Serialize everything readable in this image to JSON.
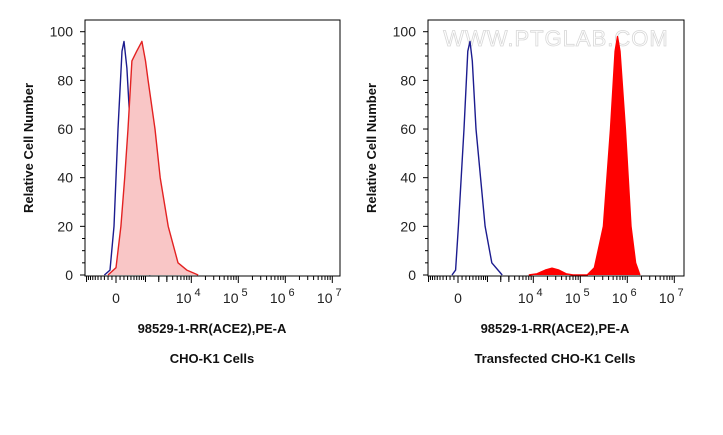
{
  "chart_data": [
    {
      "type": "area",
      "xlabel": "98529-1-RR(ACE2),PE-A",
      "ylabel": "Relative Cell Number",
      "caption": "CHO-K1 Cells",
      "x_scale": "biexponential",
      "x_tick_labels": [
        {
          "value": 0,
          "label": "0"
        },
        {
          "value": 10000,
          "label": "10",
          "exp": "4"
        },
        {
          "value": 100000,
          "label": "10",
          "exp": "5"
        },
        {
          "value": 1000000,
          "label": "10",
          "exp": "6"
        },
        {
          "value": 10000000,
          "label": "10",
          "exp": "7"
        }
      ],
      "y_ticks": [
        0,
        20,
        40,
        60,
        80,
        100
      ],
      "ylim": [
        0,
        100
      ],
      "xlim": [
        -1500,
        12000000
      ],
      "grid": false,
      "series": [
        {
          "role": "control",
          "color": "#1c1c8f",
          "fill": "none",
          "points": [
            [
              -300,
              0
            ],
            [
              -150,
              2
            ],
            [
              -50,
              20
            ],
            [
              50,
              60
            ],
            [
              150,
              92
            ],
            [
              200,
              96
            ],
            [
              280,
              85
            ],
            [
              400,
              55
            ],
            [
              550,
              25
            ],
            [
              750,
              8
            ],
            [
              1000,
              2
            ],
            [
              1300,
              0
            ]
          ]
        },
        {
          "role": "sample",
          "color": "#e32222",
          "fill": "#f9c6c6",
          "points": [
            [
              -200,
              0
            ],
            [
              0,
              3
            ],
            [
              120,
              20
            ],
            [
              220,
              40
            ],
            [
              310,
              60
            ],
            [
              430,
              88
            ],
            [
              600,
              92
            ],
            [
              820,
              96
            ],
            [
              1000,
              88
            ],
            [
              1150,
              80
            ],
            [
              1650,
              60
            ],
            [
              2150,
              40
            ],
            [
              3200,
              20
            ],
            [
              5200,
              5
            ],
            [
              8000,
              2
            ],
            [
              14000,
              0
            ]
          ]
        }
      ]
    },
    {
      "type": "area",
      "xlabel": "98529-1-RR(ACE2),PE-A",
      "ylabel": "Relative Cell Number",
      "caption": "Transfected CHO-K1 Cells",
      "watermark": "WWW.PTGLAB.COM",
      "x_scale": "biexponential",
      "x_tick_labels": [
        {
          "value": 0,
          "label": "0"
        },
        {
          "value": 10000,
          "label": "10",
          "exp": "4"
        },
        {
          "value": 100000,
          "label": "10",
          "exp": "5"
        },
        {
          "value": 1000000,
          "label": "10",
          "exp": "6"
        },
        {
          "value": 10000000,
          "label": "10",
          "exp": "7"
        }
      ],
      "y_ticks": [
        0,
        20,
        40,
        60,
        80,
        100
      ],
      "ylim": [
        0,
        100
      ],
      "xlim": [
        -1500,
        12000000
      ],
      "grid": false,
      "series": [
        {
          "role": "control",
          "color": "#1c1c8f",
          "fill": "none",
          "points": [
            [
              -150,
              0
            ],
            [
              -60,
              2
            ],
            [
              10,
              20
            ],
            [
              150,
              60
            ],
            [
              250,
              92
            ],
            [
              310,
              96
            ],
            [
              380,
              88
            ],
            [
              500,
              60
            ],
            [
              875,
              20
            ],
            [
              1260,
              5
            ],
            [
              2150,
              0
            ]
          ]
        },
        {
          "role": "sample",
          "color": "#ff0000",
          "fill": "#ff0000",
          "points": [
            [
              8000,
              0
            ],
            [
              12000,
              0.5
            ],
            [
              18000,
              2
            ],
            [
              25000,
              2.8
            ],
            [
              35000,
              2
            ],
            [
              50000,
              0.5
            ],
            [
              70000,
              0
            ],
            [
              140000,
              0
            ],
            [
              200000,
              3
            ],
            [
              310000,
              20
            ],
            [
              440000,
              60
            ],
            [
              550000,
              92
            ],
            [
              620000,
              98
            ],
            [
              700000,
              92
            ],
            [
              910000,
              60
            ],
            [
              1200000,
              20
            ],
            [
              1500000,
              5
            ],
            [
              1850000,
              0
            ]
          ]
        }
      ]
    }
  ]
}
